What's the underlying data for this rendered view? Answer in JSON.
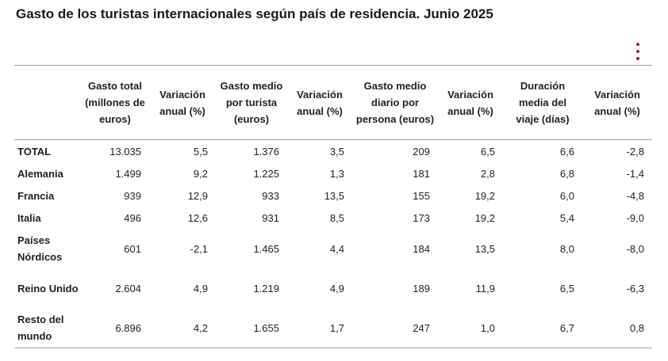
{
  "title": "Gasto de los turistas internacionales según país de residencia. Junio 2025",
  "menu_icon": "vertical-ellipsis-icon",
  "accent_color": "#a01c30",
  "chart_data": {
    "type": "table",
    "title": "Gasto de los turistas internacionales según país de residencia. Junio 2025",
    "columns": [
      "",
      "Gasto total (millones de euros)",
      "Variación anual (%)",
      "Gasto medio por turista (euros)",
      "Variación anual (%)",
      "Gasto medio diario por persona (euros)",
      "Variación anual (%)",
      "Duración media del viaje (días)",
      "Variación anual (%)"
    ],
    "rows": [
      {
        "label": "TOTAL",
        "values": [
          "13.035",
          "5,5",
          "1.376",
          "3,5",
          "209",
          "6,5",
          "6,6",
          "-2,8"
        ]
      },
      {
        "label": "Alemania",
        "values": [
          "1.499",
          "9,2",
          "1.225",
          "1,3",
          "181",
          "2,8",
          "6,8",
          "-1,4"
        ]
      },
      {
        "label": "Francia",
        "values": [
          "939",
          "12,9",
          "933",
          "13,5",
          "155",
          "19,2",
          "6,0",
          "-4,8"
        ]
      },
      {
        "label": "Italia",
        "values": [
          "496",
          "12,6",
          "931",
          "8,5",
          "173",
          "19,2",
          "5,4",
          "-9,0"
        ]
      },
      {
        "label": "Países Nórdicos",
        "values": [
          "601",
          "-2,1",
          "1.465",
          "4,4",
          "184",
          "13,5",
          "8,0",
          "-8,0"
        ]
      },
      {
        "label": "Reino Unido",
        "values": [
          "2.604",
          "4,9",
          "1.219",
          "4,9",
          "189",
          "11,9",
          "6,5",
          "-6,3"
        ]
      },
      {
        "label": "Resto del mundo",
        "values": [
          "6.896",
          "4,2",
          "1.655",
          "1,7",
          "247",
          "1,0",
          "6,7",
          "0,8"
        ]
      }
    ]
  }
}
